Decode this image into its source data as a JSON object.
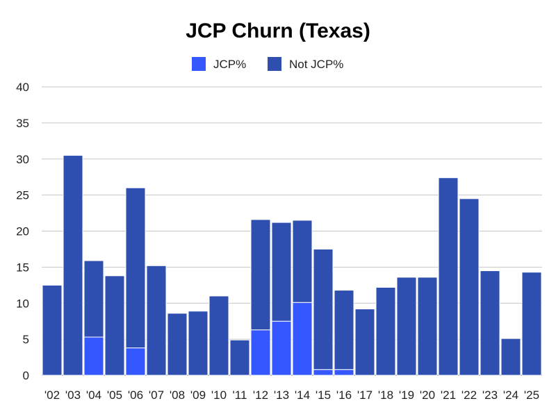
{
  "chart_data": {
    "type": "bar",
    "stacked": true,
    "title": "JCP Churn (Texas)",
    "xlabel": "",
    "ylabel": "",
    "ylim": [
      0,
      40
    ],
    "yticks": [
      0,
      5,
      10,
      15,
      20,
      25,
      30,
      35,
      40
    ],
    "grid": true,
    "legend_position": "top",
    "categories": [
      "'02",
      "'03",
      "'04",
      "'05",
      "'06",
      "'07",
      "'08",
      "'09",
      "'10",
      "'11",
      "'12",
      "'13",
      "'14",
      "'15",
      "'16",
      "'17",
      "'18",
      "'19",
      "'20",
      "'21",
      "'22",
      "'23",
      "'24",
      "'25"
    ],
    "series": [
      {
        "name": "JCP%",
        "color": "#3557ff",
        "values": [
          0,
          0,
          5.3,
          0,
          3.8,
          0,
          0,
          0,
          0,
          0,
          6.3,
          7.5,
          10.1,
          0.8,
          0.8,
          0,
          0,
          0,
          0,
          0,
          0,
          0,
          0,
          0
        ]
      },
      {
        "name": "Not JCP%",
        "color": "#2e4eb0",
        "values": [
          12.5,
          30.5,
          10.6,
          13.8,
          22.2,
          15.2,
          8.6,
          8.9,
          11.0,
          4.9,
          15.3,
          13.7,
          11.4,
          16.7,
          11.0,
          9.2,
          12.2,
          13.6,
          13.6,
          27.4,
          24.5,
          14.5,
          5.1,
          14.3
        ]
      }
    ]
  }
}
